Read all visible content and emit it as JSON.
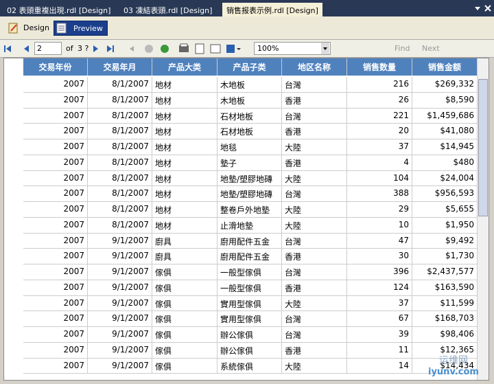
{
  "tabs": [
    "02 表頭重複出現.rdl [Design]",
    "03 凍結表頭.rdl [Design]",
    "销售报表示例.rdl [Design]"
  ],
  "view_buttons": [
    "Design",
    "Preview"
  ],
  "toolbar": {
    "page": "2",
    "of": "of",
    "total": "3 ?",
    "zoom": "100%",
    "find": "Find",
    "next": "Next"
  },
  "table": {
    "columns": [
      "交易年份",
      "交易年月",
      "产品大类",
      "产品子类",
      "地区名称",
      "销售数量",
      "销售金额"
    ],
    "rows": [
      [
        "2007",
        "8/1/2007",
        "地材",
        "木地板",
        "台灣",
        "216",
        "$269,332"
      ],
      [
        "2007",
        "8/1/2007",
        "地材",
        "木地板",
        "香港",
        "26",
        "$8,590"
      ],
      [
        "2007",
        "8/1/2007",
        "地材",
        "石材地板",
        "台灣",
        "221",
        "$1,459,686"
      ],
      [
        "2007",
        "8/1/2007",
        "地材",
        "石材地板",
        "香港",
        "20",
        "$41,080"
      ],
      [
        "2007",
        "8/1/2007",
        "地材",
        "地毯",
        "大陸",
        "37",
        "$14,945"
      ],
      [
        "2007",
        "8/1/2007",
        "地材",
        "墊子",
        "香港",
        "4",
        "$480"
      ],
      [
        "2007",
        "8/1/2007",
        "地材",
        "地墊/塑膠地磚",
        "大陸",
        "104",
        "$24,004"
      ],
      [
        "2007",
        "8/1/2007",
        "地材",
        "地墊/塑膠地磚",
        "台灣",
        "388",
        "$956,593"
      ],
      [
        "2007",
        "8/1/2007",
        "地材",
        "整卷戶外地墊",
        "大陸",
        "29",
        "$5,655"
      ],
      [
        "2007",
        "8/1/2007",
        "地材",
        "止滑地墊",
        "大陸",
        "10",
        "$1,950"
      ],
      [
        "2007",
        "9/1/2007",
        "廚具",
        "廚用配件五金",
        "台灣",
        "47",
        "$9,492"
      ],
      [
        "2007",
        "9/1/2007",
        "廚具",
        "廚用配件五金",
        "香港",
        "30",
        "$1,730"
      ],
      [
        "2007",
        "9/1/2007",
        "傢俱",
        "一般型傢俱",
        "台灣",
        "396",
        "$2,437,577"
      ],
      [
        "2007",
        "9/1/2007",
        "傢俱",
        "一般型傢俱",
        "香港",
        "124",
        "$163,590"
      ],
      [
        "2007",
        "9/1/2007",
        "傢俱",
        "實用型傢俱",
        "大陸",
        "37",
        "$11,599"
      ],
      [
        "2007",
        "9/1/2007",
        "傢俱",
        "實用型傢俱",
        "台灣",
        "67",
        "$168,703"
      ],
      [
        "2007",
        "9/1/2007",
        "傢俱",
        "辦公傢俱",
        "台灣",
        "39",
        "$98,406"
      ],
      [
        "2007",
        "9/1/2007",
        "傢俱",
        "辦公傢俱",
        "香港",
        "11",
        "$12,365"
      ],
      [
        "2007",
        "9/1/2007",
        "傢俱",
        "系統傢俱",
        "大陸",
        "14",
        "$14,434"
      ]
    ]
  },
  "watermark": [
    "运维网",
    "iyunv.com"
  ]
}
